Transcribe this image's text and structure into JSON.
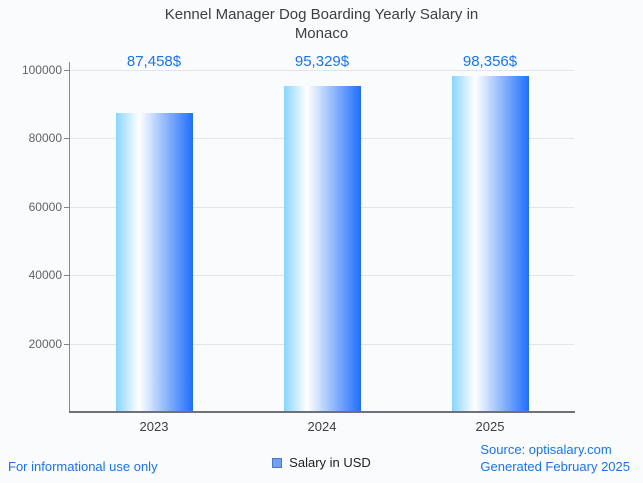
{
  "title": "Kennel Manager Dog Boarding Yearly Salary in Monaco",
  "chart_data": {
    "type": "bar",
    "categories": [
      "2023",
      "2024",
      "2025"
    ],
    "values": [
      87458,
      95329,
      98356
    ],
    "value_labels": [
      "87,458$",
      "95,329$",
      "98,356$"
    ],
    "series": [
      {
        "name": "Salary in USD",
        "values": [
          87458,
          95329,
          98356
        ]
      }
    ],
    "title": "Kennel Manager Dog Boarding Yearly Salary in Monaco",
    "xlabel": "",
    "ylabel": "",
    "ylim": [
      0,
      100000
    ],
    "yticks": [
      20000,
      40000,
      60000,
      80000,
      100000
    ],
    "grid": true,
    "legend_position": "bottom"
  },
  "legend": {
    "label": "Salary in USD"
  },
  "footer": {
    "left": "For informational use only",
    "source": "Source: optisalary.com",
    "generated": "Generated February 2025"
  },
  "colors": {
    "accent_blue": "#1a73e8",
    "bar_gradient_start": "#8ad5fb",
    "bar_gradient_mid": "#ffffff",
    "bar_gradient_end": "#1e6ffb",
    "axis": "#6d7278",
    "gridline": "#e3e5ea",
    "title_text": "#3c4043",
    "tick_text": "#5f6368",
    "legend_swatch_fill": "#6fa1ef",
    "legend_swatch_border": "#4a77c9"
  }
}
